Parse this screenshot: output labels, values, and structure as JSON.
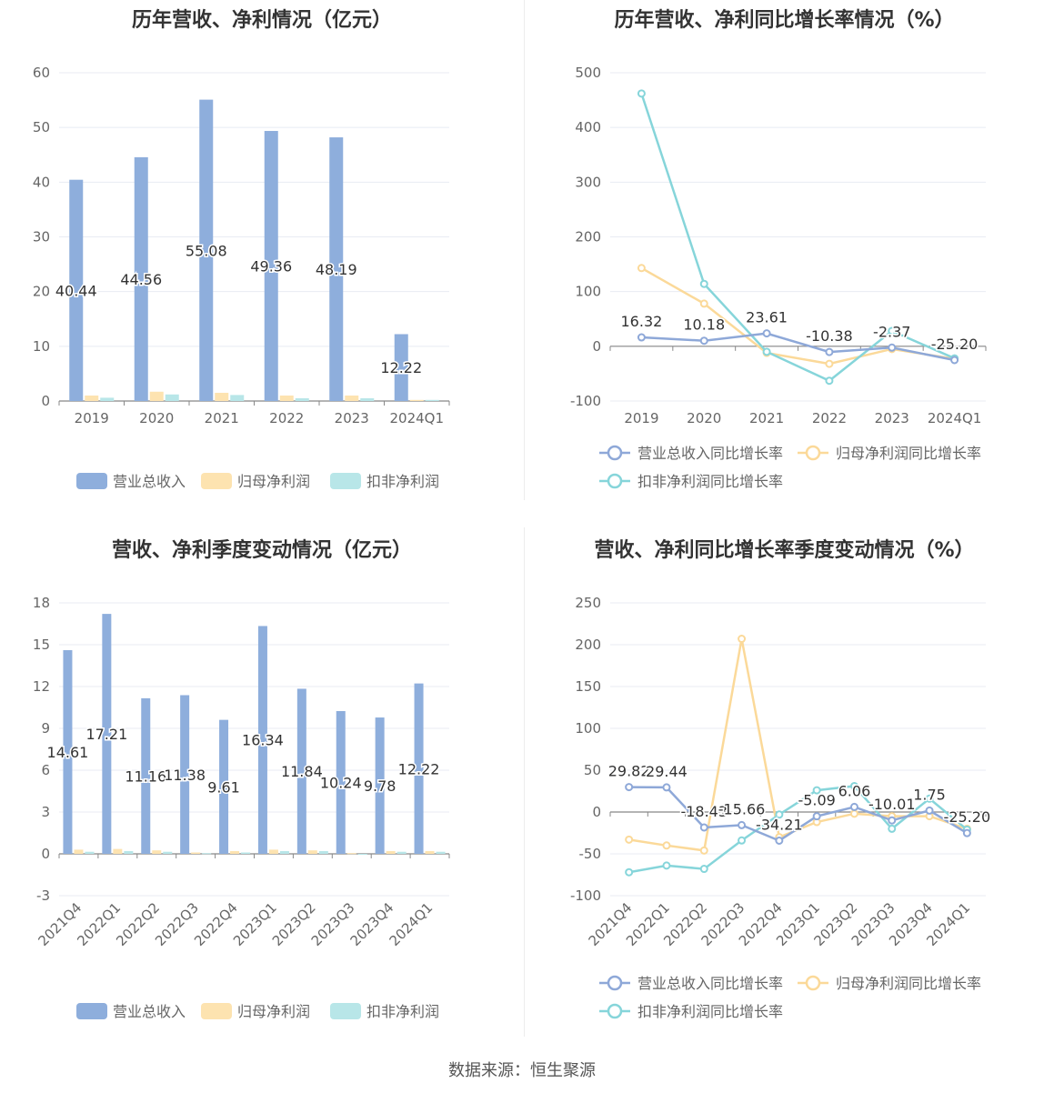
{
  "colors": {
    "revenue": "#8eaedc",
    "net_profit": "#fde3b0",
    "deducted_profit": "#b8e6e8",
    "revenue_line": "#8ea8d8",
    "net_profit_line": "#fbd999",
    "deducted_profit_line": "#86d5da",
    "grid": "#e8ebf3",
    "axis": "#666666"
  },
  "source": "数据来源：恒生聚源",
  "chart_data": [
    {
      "type": "bar",
      "title": "历年营收、净利情况（亿元）",
      "categories": [
        "2019",
        "2020",
        "2021",
        "2022",
        "2023",
        "2024Q1"
      ],
      "ylim": [
        0,
        60
      ],
      "yticks": [
        "0",
        "10",
        "20",
        "30",
        "40",
        "50",
        "60"
      ],
      "series": [
        {
          "name": "营业总收入",
          "values": [
            40.44,
            44.56,
            55.08,
            49.36,
            48.19,
            12.22
          ],
          "labels": [
            "40.44",
            "44.56",
            "55.08",
            "49.36",
            "48.19",
            "12.22"
          ]
        },
        {
          "name": "归母净利润",
          "values": [
            1.0,
            1.7,
            1.5,
            1.0,
            1.0,
            0.2
          ]
        },
        {
          "name": "扣非净利润",
          "values": [
            0.6,
            1.2,
            1.1,
            0.5,
            0.5,
            0.2
          ]
        }
      ],
      "legend": "bottom",
      "grid": true
    },
    {
      "type": "line",
      "title": "历年营收、净利同比增长率情况（%）",
      "categories": [
        "2019",
        "2020",
        "2021",
        "2022",
        "2023",
        "2024Q1"
      ],
      "ylim": [
        -100,
        500
      ],
      "yticks": [
        "-100",
        "0",
        "100",
        "200",
        "300",
        "400",
        "500"
      ],
      "series": [
        {
          "name": "营业总收入同比增长率",
          "values": [
            16.32,
            10.18,
            23.61,
            -10.38,
            -2.37,
            -25.2
          ],
          "labels": [
            "16.32",
            "10.18",
            "23.61",
            "-10.38",
            "-2.37",
            "-25.20"
          ]
        },
        {
          "name": "归母净利润同比增长率",
          "values": [
            143,
            78,
            -12,
            -32,
            -5,
            -23
          ]
        },
        {
          "name": "扣非净利润同比增长率",
          "values": [
            462,
            114,
            -10,
            -63,
            28,
            -22
          ]
        }
      ],
      "legend": "bottom",
      "grid": true
    },
    {
      "type": "bar",
      "title": "营收、净利季度变动情况（亿元）",
      "categories": [
        "2021Q4",
        "2022Q1",
        "2022Q2",
        "2022Q3",
        "2022Q4",
        "2023Q1",
        "2023Q2",
        "2023Q3",
        "2023Q4",
        "2024Q1"
      ],
      "ylim": [
        -3,
        18
      ],
      "yticks": [
        "-3",
        "0",
        "3",
        "6",
        "9",
        "12",
        "15",
        "18"
      ],
      "series": [
        {
          "name": "营业总收入",
          "values": [
            14.61,
            17.21,
            11.16,
            11.38,
            9.61,
            16.34,
            11.84,
            10.24,
            9.78,
            12.22
          ],
          "labels": [
            "14.61",
            "17.21",
            "11.16",
            "11.38",
            "9.61",
            "16.34",
            "11.84",
            "10.24",
            "9.78",
            "12.22"
          ]
        },
        {
          "name": "归母净利润",
          "values": [
            0.3,
            0.35,
            0.25,
            0.1,
            0.2,
            0.3,
            0.25,
            0.05,
            0.2,
            0.2
          ]
        },
        {
          "name": "扣非净利润",
          "values": [
            0.15,
            0.2,
            0.15,
            0.05,
            0.1,
            0.2,
            0.2,
            -0.05,
            0.15,
            0.15
          ]
        }
      ],
      "legend": "bottom",
      "grid": true
    },
    {
      "type": "line",
      "title": "营收、净利同比增长率季度变动情况（%）",
      "categories": [
        "2021Q4",
        "2022Q1",
        "2022Q2",
        "2022Q3",
        "2022Q4",
        "2023Q1",
        "2023Q2",
        "2023Q3",
        "2023Q4",
        "2024Q1"
      ],
      "ylim": [
        -100,
        250
      ],
      "yticks": [
        "-100",
        "-50",
        "0",
        "50",
        "100",
        "150",
        "200",
        "250"
      ],
      "series": [
        {
          "name": "营业总收入同比增长率",
          "values": [
            29.82,
            29.44,
            -18.43,
            -15.66,
            -34.21,
            -5.09,
            6.06,
            -10.01,
            1.75,
            -25.2
          ],
          "labels": [
            "29.82",
            "29.44",
            "-18.43",
            "-15.66",
            "-34.21",
            "-5.09",
            "6.06",
            "-10.01",
            "1.75",
            "-25.20"
          ]
        },
        {
          "name": "归母净利润同比增长率",
          "values": [
            -33,
            -40,
            -46,
            207,
            -30,
            -12,
            -2,
            -5,
            -5,
            -20
          ]
        },
        {
          "name": "扣非净利润同比增长率",
          "values": [
            -72,
            -64,
            -68,
            -34,
            -3,
            26,
            31,
            -20,
            16,
            -21
          ]
        }
      ],
      "legend": "bottom",
      "grid": true
    }
  ]
}
